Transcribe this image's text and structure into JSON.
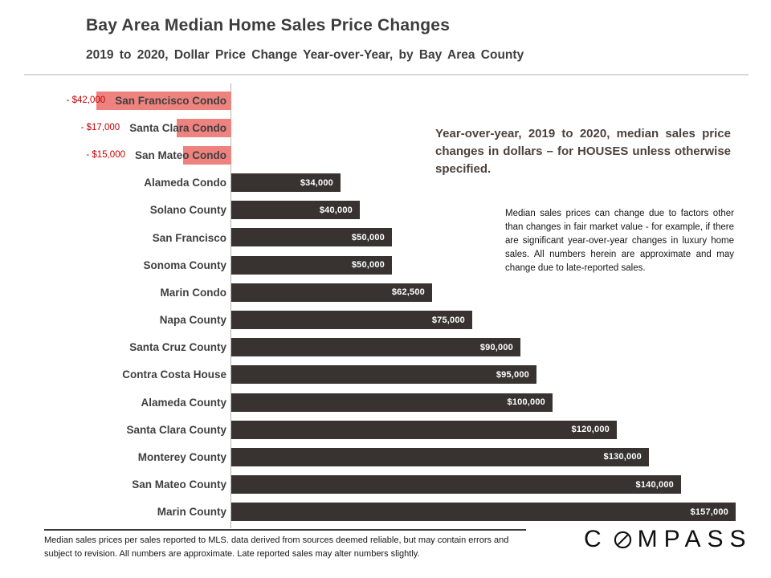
{
  "chart_data": {
    "type": "bar",
    "orientation": "horizontal",
    "title": "Bay Area Median Home Sales Price Changes",
    "subtitle": "2019 to 2020, Dollar Price Change Year-over-Year, by Bay Area County",
    "xlabel": "",
    "ylabel": "",
    "unit": "USD",
    "xlim": [
      -50000,
      160000
    ],
    "grid": false,
    "legend": false,
    "categories": [
      "San Francisco Condo",
      "Santa Clara Condo",
      "San Mateo Condo",
      "Alameda Condo",
      "Solano County",
      "San Francisco",
      "Sonoma County",
      "Marin Condo",
      "Napa County",
      "Santa Cruz County",
      "Contra Costa House",
      "Alameda County",
      "Santa Clara County",
      "Monterey County",
      "San Mateo County",
      "Marin County"
    ],
    "values": [
      -42000,
      -17000,
      -15000,
      34000,
      40000,
      50000,
      50000,
      62500,
      75000,
      90000,
      95000,
      100000,
      120000,
      130000,
      140000,
      157000
    ],
    "value_labels": [
      "- $42,000",
      "- $17,000",
      "- $15,000",
      "$34,000",
      "$40,000",
      "$50,000",
      "$50,000",
      "$62,500",
      "$75,000",
      "$90,000",
      "$95,000",
      "$100,000",
      "$120,000",
      "$130,000",
      "$140,000",
      "$157,000"
    ],
    "colors": {
      "positive_bar": "#383330",
      "negative_bar": "#EE827F",
      "negative_value_text": "#C00000",
      "positive_value_text": "#FFFFFF",
      "category_text": "#3F3F3F"
    },
    "annotations": [
      {
        "id": "note-bold",
        "text": "Year-over-year, 2019 to 2020, median sales price changes in dollars – for HOUSES unless otherwise specified."
      },
      {
        "id": "note-small",
        "text": "Median sales prices can change due to factors other than changes in fair market value - for example, if there are significant year-over-year changes in luxury home sales. All numbers herein are approximate and may change due to late-reported sales."
      }
    ]
  },
  "footer": {
    "text": "Median sales prices per sales reported to MLS. data derived from sources deemed reliable, but may contain errors and subject to revision.  All numbers are approximate. Late reported sales may alter numbers slightly."
  },
  "logo": {
    "text": "COMPASS"
  }
}
